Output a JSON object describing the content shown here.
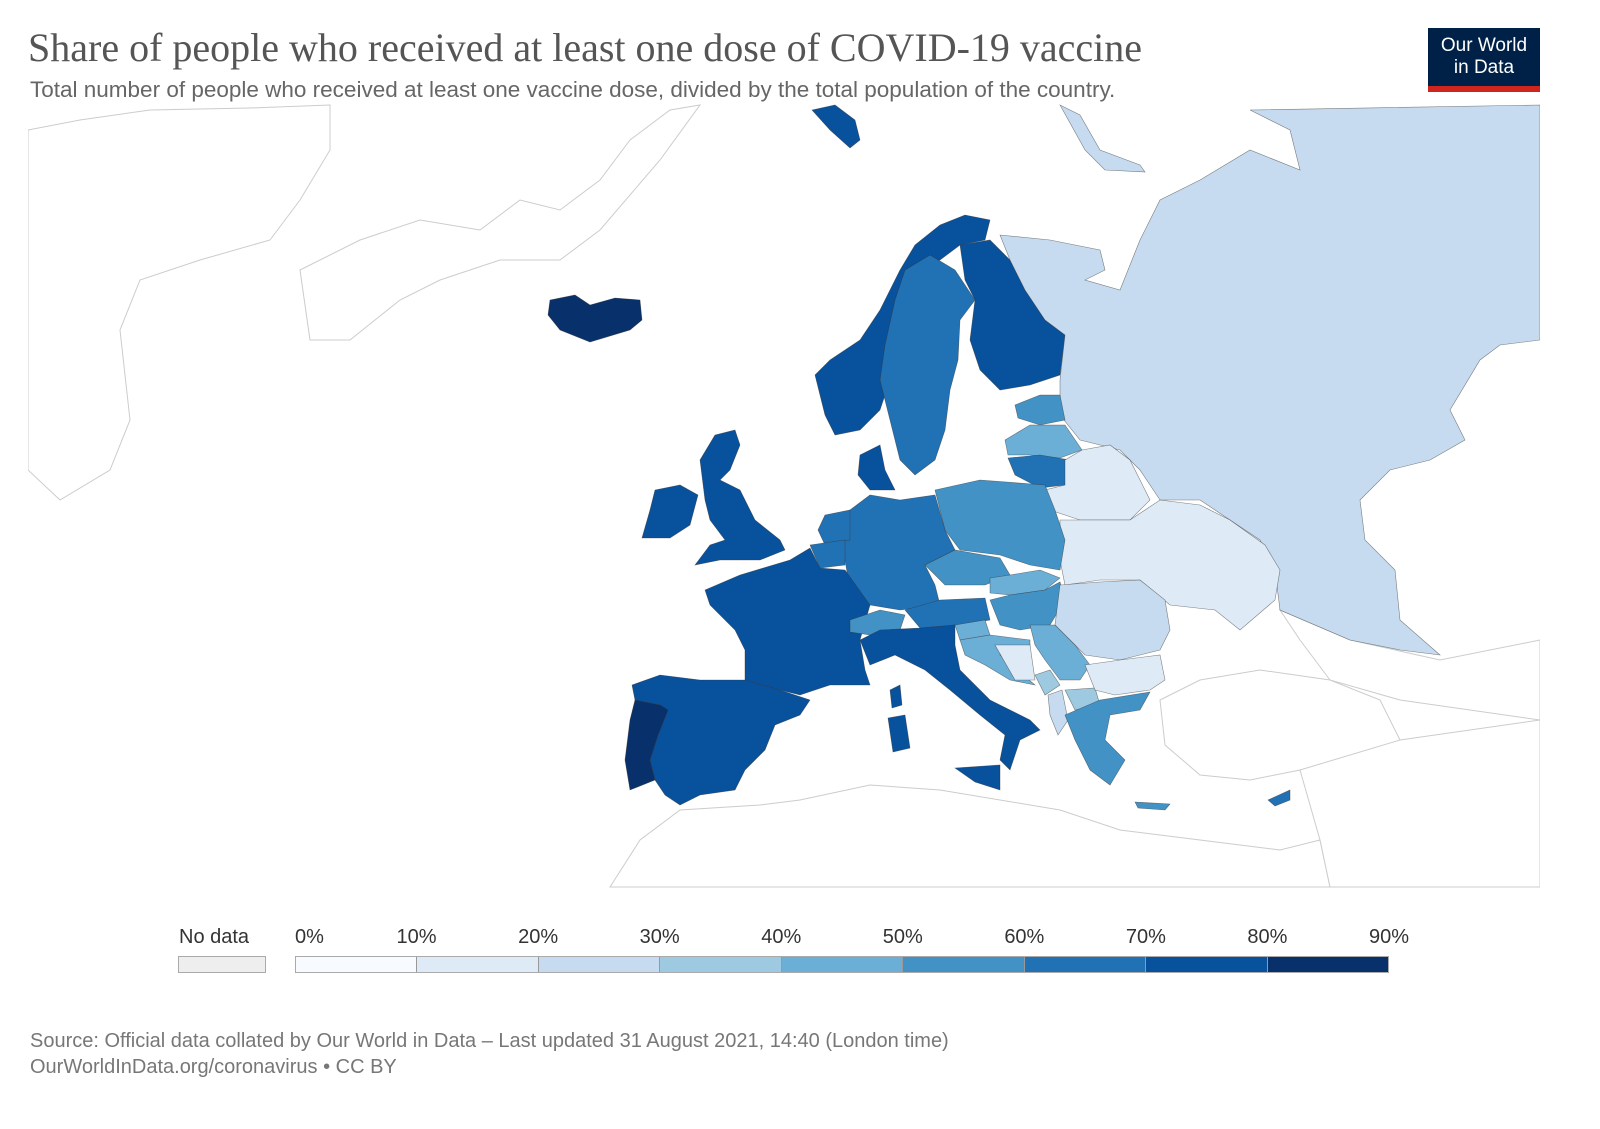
{
  "header": {
    "title": "Share of people who received at least one dose of COVID-19 vaccine",
    "subtitle": "Total number of people who received at least one vaccine dose, divided by the total population of the country."
  },
  "logo": {
    "line1": "Our World",
    "line2": "in Data"
  },
  "legend": {
    "no_data_label": "No data",
    "no_data_color": "#eeeeee",
    "ticks": [
      "0%",
      "10%",
      "20%",
      "30%",
      "40%",
      "50%",
      "60%",
      "70%",
      "80%",
      "90%"
    ],
    "bin_colors": [
      "#f7fbff",
      "#deebf7",
      "#c6dbef",
      "#9ecae1",
      "#6baed6",
      "#4292c6",
      "#2171b5",
      "#08519c",
      "#08306b"
    ]
  },
  "footer": {
    "source": "Source: Official data collated by Our World in Data – Last updated 31 August 2021, 14:40 (London time)",
    "link": "OurWorldInData.org/coronavirus • CC BY"
  }
}
